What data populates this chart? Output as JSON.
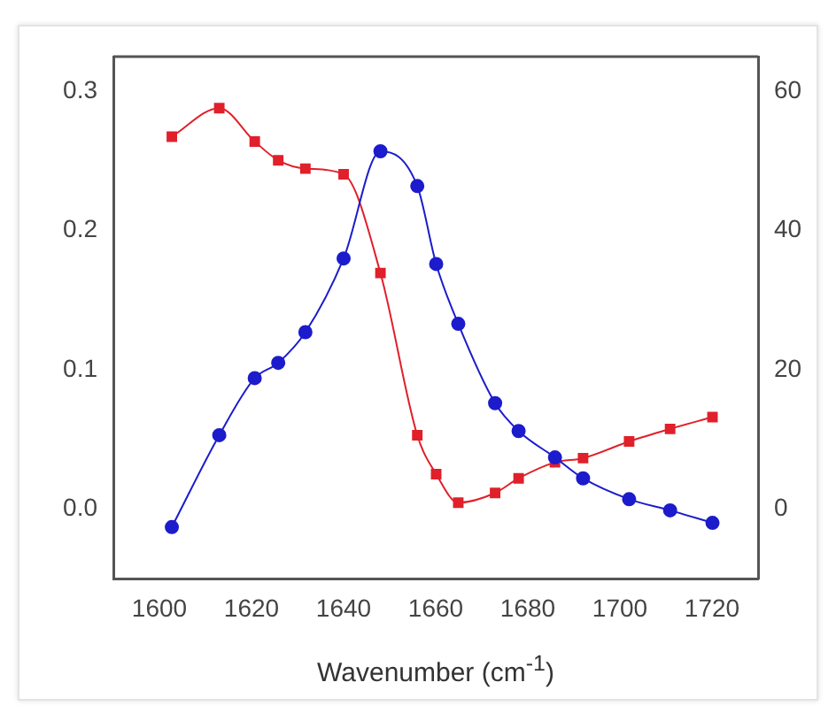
{
  "chart_data": {
    "type": "line",
    "xlabel": "Wavenumber (cm$^{-1}$)",
    "x": [
      1602.7,
      1613,
      1620.7,
      1625.8,
      1631.7,
      1640,
      1648,
      1656,
      1660.1,
      1664.9,
      1672.9,
      1678,
      1685.9,
      1692,
      1702,
      1710.9,
      1720.1
    ],
    "series": [
      {
        "color": "#1c1ccc",
        "marker": "circle",
        "values": [
          -0.013,
          0.053,
          0.094,
          0.105,
          0.127,
          0.18,
          0.257,
          0.232,
          0.176,
          0.133,
          0.076,
          0.056,
          0.037,
          0.022,
          0.007,
          -0.001,
          -0.01
        ]
      },
      {
        "color": "#e0202a",
        "marker": "square",
        "axis": "y2",
        "values": [
          53.5,
          57.6,
          52.8,
          50.1,
          48.9,
          48.1,
          33.9,
          10.6,
          5.0,
          0.9,
          2.3,
          4.4,
          6.7,
          7.3,
          9.7,
          11.5,
          13.2
        ]
      }
    ],
    "xlim": [
      1590,
      1730
    ],
    "xticks": [
      1600,
      1620,
      1640,
      1660,
      1680,
      1700,
      1720
    ],
    "ylim": [
      -0.05,
      0.325
    ],
    "yticks": [
      {
        "value": 0,
        "label": "0.0"
      },
      {
        "value": 0.1,
        "label": "0.1"
      },
      {
        "value": 0.2,
        "label": "0.2"
      },
      {
        "value": 0.3,
        "label": "0.3"
      }
    ],
    "y2lim": [
      -10,
      65
    ],
    "y2ticks": [
      0,
      20,
      40,
      60
    ],
    "grid": false,
    "legend": false
  }
}
